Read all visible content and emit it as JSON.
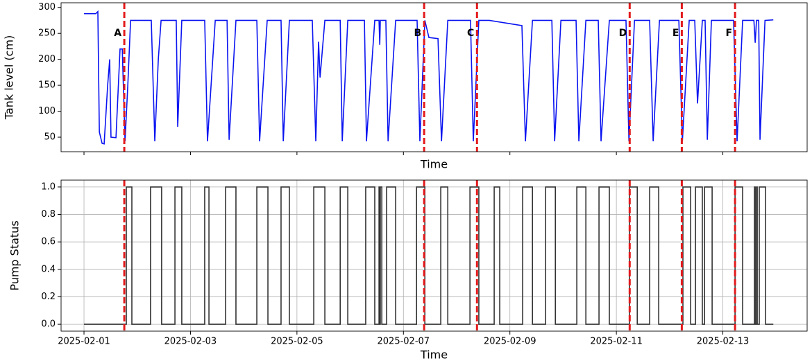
{
  "chart_data": [
    {
      "type": "line",
      "xlabel": "Time",
      "ylabel": "Tank level (cm)",
      "grid": false,
      "xlim": [
        "2025-01-31T13:40",
        "2025-02-14T14:00"
      ],
      "xticks": [
        "2025-02-01",
        "2025-02-03",
        "2025-02-05",
        "2025-02-07",
        "2025-02-09",
        "2025-02-11",
        "2025-02-13"
      ],
      "ylim": [
        22,
        309
      ],
      "yticks": [
        50,
        100,
        150,
        200,
        250,
        300
      ],
      "x": [
        "2025-02-01T00:00",
        "2025-02-01T05:20",
        "2025-02-01T06:15",
        "2025-02-01T06:55",
        "2025-02-01T08:10",
        "2025-02-01T09:05",
        "2025-02-01T10:40",
        "2025-02-01T11:35",
        "2025-02-01T12:10",
        "2025-02-01T14:25",
        "2025-02-01T16:15",
        "2025-02-01T17:15",
        "2025-02-01T18:30",
        "2025-02-01T19:45",
        "2025-02-01T21:00",
        "2025-02-02T06:20",
        "2025-02-02T07:55",
        "2025-02-02T09:30",
        "2025-02-02T10:45",
        "2025-02-02T17:35",
        "2025-02-02T18:15",
        "2025-02-02T20:05",
        "2025-02-03T06:25",
        "2025-02-03T07:40",
        "2025-02-03T11:10",
        "2025-02-03T16:30",
        "2025-02-03T17:25",
        "2025-02-03T20:30",
        "2025-02-04T05:55",
        "2025-02-04T07:10",
        "2025-02-04T10:35",
        "2025-02-04T16:50",
        "2025-02-04T17:50",
        "2025-02-04T20:35",
        "2025-02-05T06:55",
        "2025-02-05T08:30",
        "2025-02-05T09:45",
        "2025-02-05T10:25",
        "2025-02-05T12:35",
        "2025-02-05T19:30",
        "2025-02-05T20:25",
        "2025-02-05T22:55",
        "2025-02-06T06:25",
        "2025-02-06T07:20",
        "2025-02-06T11:05",
        "2025-02-06T13:00",
        "2025-02-06T13:20",
        "2025-02-06T13:35",
        "2025-02-06T16:05",
        "2025-02-06T17:05",
        "2025-02-06T20:30",
        "2025-02-07T06:10",
        "2025-02-07T07:25",
        "2025-02-07T09:40",
        "2025-02-07T11:30",
        "2025-02-07T15:35",
        "2025-02-07T17:10",
        "2025-02-07T20:00",
        "2025-02-08T06:15",
        "2025-02-08T07:30",
        "2025-02-08T10:00",
        "2025-02-08T14:45",
        "2025-02-09T05:25",
        "2025-02-09T07:00",
        "2025-02-09T10:10",
        "2025-02-09T18:55",
        "2025-02-09T20:10",
        "2025-02-09T23:00",
        "2025-02-10T05:50",
        "2025-02-10T07:05",
        "2025-02-10T10:15",
        "2025-02-10T15:50",
        "2025-02-10T17:05",
        "2025-02-10T20:50",
        "2025-02-11T04:20",
        "2025-02-11T05:40",
        "2025-02-11T08:10",
        "2025-02-11T15:00",
        "2025-02-11T16:35",
        "2025-02-11T19:25",
        "2025-02-12T04:10",
        "2025-02-12T05:45",
        "2025-02-12T08:50",
        "2025-02-12T11:20",
        "2025-02-12T12:35",
        "2025-02-12T14:45",
        "2025-02-12T16:00",
        "2025-02-12T17:00",
        "2025-02-12T18:50",
        "2025-02-13T04:50",
        "2025-02-13T06:25",
        "2025-02-13T08:55",
        "2025-02-13T14:00",
        "2025-02-13T14:35",
        "2025-02-13T15:10",
        "2025-02-13T16:10",
        "2025-02-13T16:45",
        "2025-02-13T19:00",
        "2025-02-13T22:45"
      ],
      "series": [
        {
          "color": "#0a14f0",
          "values": [
            288,
            288,
            292,
            60,
            38,
            37,
            150,
            200,
            50,
            49,
            220,
            220,
            42,
            150,
            275,
            275,
            42,
            200,
            275,
            275,
            70,
            275,
            275,
            42,
            275,
            275,
            45,
            275,
            275,
            42,
            275,
            275,
            42,
            275,
            275,
            42,
            234,
            165,
            275,
            275,
            42,
            275,
            275,
            42,
            275,
            275,
            228,
            275,
            275,
            42,
            275,
            275,
            42,
            275,
            242,
            240,
            42,
            275,
            275,
            42,
            275,
            275,
            265,
            42,
            275,
            275,
            42,
            275,
            275,
            42,
            275,
            275,
            42,
            275,
            275,
            42,
            275,
            275,
            42,
            275,
            275,
            42,
            275,
            275,
            115,
            275,
            275,
            45,
            275,
            275,
            42,
            275,
            275,
            232,
            275,
            275,
            45,
            275,
            276
          ]
        }
      ],
      "events": [
        {
          "x": "2025-02-01T18:10",
          "label": "A"
        },
        {
          "x": "2025-02-07T09:20",
          "label": "B"
        },
        {
          "x": "2025-02-08T09:10",
          "label": "C"
        },
        {
          "x": "2025-02-11T06:00",
          "label": "D"
        },
        {
          "x": "2025-02-12T05:30",
          "label": "E"
        },
        {
          "x": "2025-02-13T05:30",
          "label": "F"
        }
      ],
      "event_color": "#e31a1c"
    },
    {
      "type": "step",
      "xlabel": "Time",
      "ylabel": "Pump Status",
      "grid": true,
      "xlim": [
        "2025-01-31T13:40",
        "2025-02-14T14:00"
      ],
      "xticks": [
        "2025-02-01",
        "2025-02-03",
        "2025-02-05",
        "2025-02-07",
        "2025-02-09",
        "2025-02-11",
        "2025-02-13"
      ],
      "ylim": [
        -0.05,
        1.05
      ],
      "yticks": [
        {
          "value": 0,
          "label": "0.0"
        },
        {
          "value": 0.2,
          "label": "0.2"
        },
        {
          "value": 0.4,
          "label": "0.4"
        },
        {
          "value": 0.6,
          "label": "0.6"
        },
        {
          "value": 0.8,
          "label": "0.8"
        },
        {
          "value": 1,
          "label": "1.0"
        }
      ],
      "x": [
        "2025-02-01T00:00",
        "2025-02-01T19:05",
        "2025-02-01T21:35",
        "2025-02-02T06:00",
        "2025-02-02T11:00",
        "2025-02-02T17:00",
        "2025-02-02T20:05",
        "2025-02-03T06:25",
        "2025-02-03T08:20",
        "2025-02-03T15:50",
        "2025-02-03T20:30",
        "2025-02-04T05:55",
        "2025-02-04T10:55",
        "2025-02-04T16:50",
        "2025-02-04T20:35",
        "2025-02-05T07:35",
        "2025-02-05T12:35",
        "2025-02-05T19:30",
        "2025-02-05T22:55",
        "2025-02-06T07:00",
        "2025-02-06T11:05",
        "2025-02-06T13:00",
        "2025-02-06T13:20",
        "2025-02-06T13:35",
        "2025-02-06T14:15",
        "2025-02-06T16:25",
        "2025-02-06T20:30",
        "2025-02-07T05:55",
        "2025-02-07T09:40",
        "2025-02-07T16:50",
        "2025-02-07T20:00",
        "2025-02-08T06:00",
        "2025-02-08T10:00",
        "2025-02-08T16:55",
        "2025-02-08T19:25",
        "2025-02-09T05:45",
        "2025-02-09T10:10",
        "2025-02-09T16:05",
        "2025-02-09T20:30",
        "2025-02-10T06:10",
        "2025-02-10T10:15",
        "2025-02-10T16:10",
        "2025-02-10T20:50",
        "2025-02-11T05:55",
        "2025-02-11T09:25",
        "2025-02-11T15:00",
        "2025-02-11T19:05",
        "2025-02-12T06:00",
        "2025-02-12T09:30",
        "2025-02-12T11:40",
        "2025-02-12T14:45",
        "2025-02-12T15:45",
        "2025-02-12T19:10",
        "2025-02-13T05:30",
        "2025-02-13T08:55",
        "2025-02-13T14:15",
        "2025-02-13T14:35",
        "2025-02-13T15:10",
        "2025-02-13T15:30",
        "2025-02-13T16:25",
        "2025-02-13T19:15",
        "2025-02-13T22:45"
      ],
      "series": [
        {
          "color": "#333333",
          "values": [
            0,
            1,
            0,
            1,
            0,
            1,
            0,
            1,
            0,
            1,
            0,
            1,
            0,
            1,
            0,
            1,
            0,
            1,
            0,
            1,
            0,
            1,
            0,
            1,
            0,
            1,
            0,
            1,
            0,
            1,
            0,
            1,
            0,
            1,
            0,
            1,
            0,
            1,
            0,
            1,
            0,
            1,
            0,
            1,
            0,
            1,
            0,
            1,
            0,
            1,
            0,
            1,
            0,
            1,
            0,
            1,
            0,
            1,
            0,
            1,
            0,
            0
          ]
        }
      ],
      "events": [
        {
          "x": "2025-02-01T18:10"
        },
        {
          "x": "2025-02-07T09:20"
        },
        {
          "x": "2025-02-08T09:10"
        },
        {
          "x": "2025-02-11T06:00"
        },
        {
          "x": "2025-02-12T05:30"
        },
        {
          "x": "2025-02-13T05:30"
        }
      ],
      "event_color": "#e31a1c"
    }
  ]
}
